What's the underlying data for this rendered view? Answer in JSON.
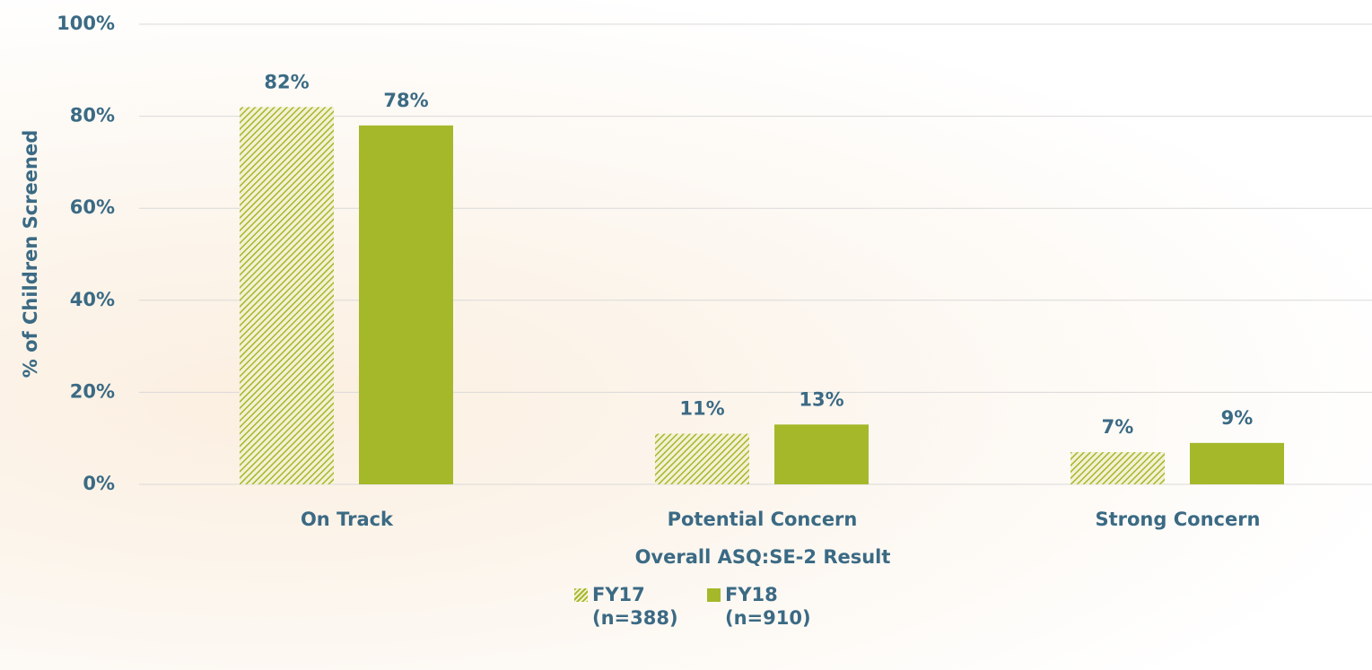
{
  "chart_data": {
    "type": "bar",
    "x_label": "Overall ASQ:SE-2 Result",
    "y_label": "% of Children Screened",
    "categories": [
      "On Track",
      "Potential Concern",
      "Strong Concern"
    ],
    "series": [
      {
        "name": "FY17 (n=388)",
        "color": "#a5b82a",
        "pattern": "hatch",
        "values": [
          82,
          11,
          7
        ],
        "value_labels": [
          "82%",
          "11%",
          "7%"
        ]
      },
      {
        "name": "FY18 (n=910)",
        "color": "#a5b82a",
        "values": [
          78,
          13,
          9
        ],
        "value_labels": [
          "78%",
          "13%",
          "9%"
        ]
      }
    ],
    "ylim": [
      0,
      100
    ],
    "yticks": [
      {
        "value": 0,
        "label": "0%"
      },
      {
        "value": 20,
        "label": "20%"
      },
      {
        "value": 40,
        "label": "40%"
      },
      {
        "value": 60,
        "label": "60%"
      },
      {
        "value": 80,
        "label": "80%"
      },
      {
        "value": 100,
        "label": "100%"
      }
    ],
    "grid": true
  }
}
